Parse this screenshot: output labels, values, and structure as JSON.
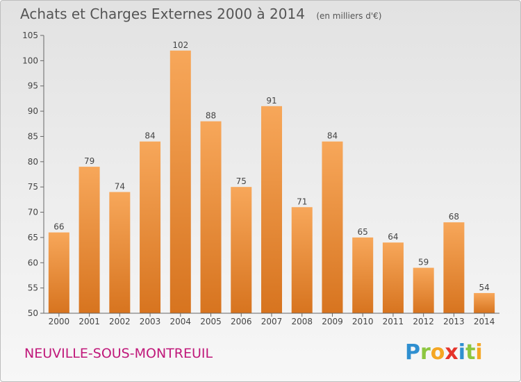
{
  "chart_data": {
    "type": "bar",
    "title": "Achats et Charges Externes 2000 à 2014",
    "subtitle": "(en milliers d'€)",
    "categories": [
      "2000",
      "2001",
      "2002",
      "2003",
      "2004",
      "2005",
      "2006",
      "2007",
      "2008",
      "2009",
      "2010",
      "2011",
      "2012",
      "2013",
      "2014"
    ],
    "values": [
      66,
      79,
      74,
      84,
      102,
      88,
      75,
      91,
      71,
      84,
      65,
      64,
      59,
      68,
      54
    ],
    "ylim": [
      50,
      105
    ],
    "yticks": [
      50,
      55,
      60,
      65,
      70,
      75,
      80,
      85,
      90,
      95,
      100,
      105
    ],
    "grid": false,
    "legend": "none",
    "xlabel": "",
    "ylabel": "",
    "bar_color_top": "#f7a75a",
    "bar_color_bottom": "#d7741f"
  },
  "footer": {
    "location": "NEUVILLE-SOUS-MONTREUIL",
    "location_color": "#c0187a",
    "logo_letters": [
      {
        "char": "P",
        "color": "#2f8fd0"
      },
      {
        "char": "r",
        "color": "#8cc63f"
      },
      {
        "char": "o",
        "color": "#f5a623"
      },
      {
        "char": "x",
        "color": "#e5332a"
      },
      {
        "char": "i",
        "color": "#2f8fd0"
      },
      {
        "char": "t",
        "color": "#8cc63f"
      },
      {
        "char": "i",
        "color": "#f5a623"
      }
    ]
  }
}
